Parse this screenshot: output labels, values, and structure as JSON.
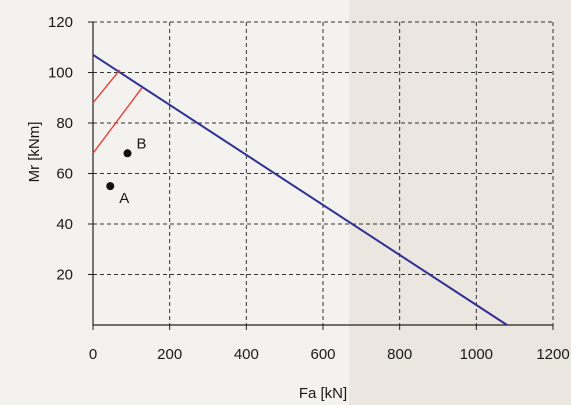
{
  "chart_data": {
    "type": "line",
    "xlabel": "Fa [kN]",
    "ylabel": "Mr [kNm]",
    "xlim": [
      0,
      1200
    ],
    "ylim": [
      0,
      120
    ],
    "xticks": [
      0,
      200,
      400,
      600,
      800,
      1000,
      1200
    ],
    "yticks": [
      20,
      40,
      60,
      80,
      100,
      120
    ],
    "grid": true,
    "series": [
      {
        "values": [
          [
            0,
            107
          ],
          [
            1080,
            0
          ]
        ],
        "color": "#2e3192"
      },
      {
        "values": [
          [
            0,
            88
          ],
          [
            70,
            101
          ]
        ],
        "color": "#e8403c"
      },
      {
        "values": [
          [
            0,
            68
          ],
          [
            128,
            94
          ]
        ],
        "color": "#e8403c"
      }
    ],
    "points": [
      {
        "label": "A",
        "x": 45,
        "y": 55
      },
      {
        "label": "B",
        "x": 90,
        "y": 68
      }
    ]
  }
}
